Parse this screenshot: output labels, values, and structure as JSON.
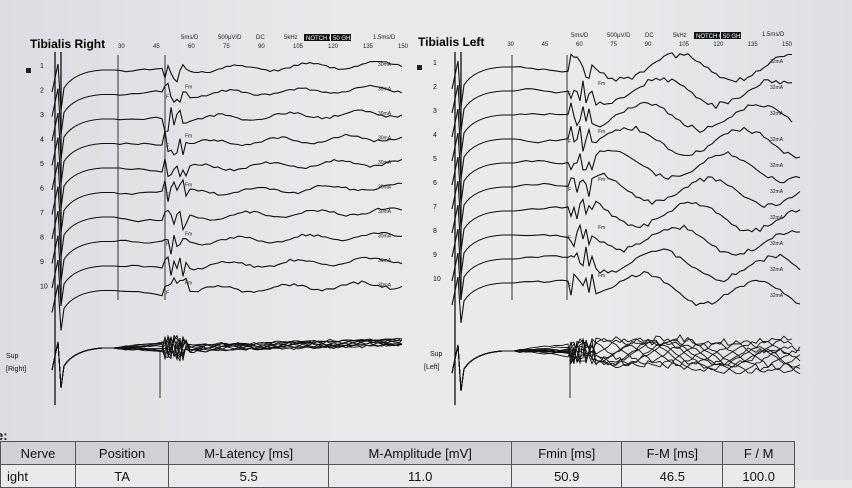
{
  "panels": [
    {
      "title": "Tibialis Right",
      "scale_top": "5ms/D",
      "scale_amp": "500µV/D",
      "filter_dc": "DC",
      "filter_hz": "5kHz",
      "notch": "NOTCH ON",
      "notch_val": "50 GHz",
      "sens": "1.5ms/D",
      "ticks": [
        "30",
        "45",
        "60",
        "75",
        "90",
        "105",
        "120",
        "135",
        "150"
      ],
      "rows": [
        "1",
        "2",
        "3",
        "4",
        "5",
        "6",
        "7",
        "8",
        "9",
        "10"
      ],
      "sup_label": [
        "Sup",
        "[Right]"
      ],
      "ma_labels": [
        "30mA",
        "30mA",
        "30mA",
        "30mA",
        "30mA",
        "30mA",
        "30mA",
        "30mA",
        "30mA",
        "30mA"
      ],
      "f_marker": "F",
      "fm_marker": "Fm"
    },
    {
      "title": "Tibialis Left",
      "scale_top": "5ms/D",
      "scale_amp": "500µV/D",
      "filter_dc": "DC",
      "filter_hz": "5kHz",
      "notch": "NOTCH ON",
      "notch_val": "50 GHz",
      "sens": "1.5ms/D",
      "ticks": [
        "15",
        "30",
        "45",
        "60",
        "75",
        "90",
        "105",
        "120",
        "135",
        "150"
      ],
      "rows": [
        "1",
        "2",
        "3",
        "4",
        "5",
        "6",
        "7",
        "8",
        "9",
        "10"
      ],
      "sup_label": [
        "Sup",
        "[Left]"
      ],
      "ma_labels": [
        "32mA",
        "32mA",
        "32mA",
        "32mA",
        "32mA",
        "32mA",
        "32mA",
        "32mA",
        "32mA",
        "32mA"
      ],
      "f_marker": "F",
      "fm_marker": "Fm"
    }
  ],
  "table": {
    "heading": "e:",
    "columns": [
      "Nerve",
      "Position",
      "M-Latency [ms]",
      "M-Amplitude [mV]",
      "Fmin [ms]",
      "F-M [ms]",
      "F / M"
    ],
    "rows": [
      [
        "ight",
        "TA",
        "5.5",
        "11.0",
        "50.9",
        "46.5",
        "100.0"
      ]
    ]
  }
}
